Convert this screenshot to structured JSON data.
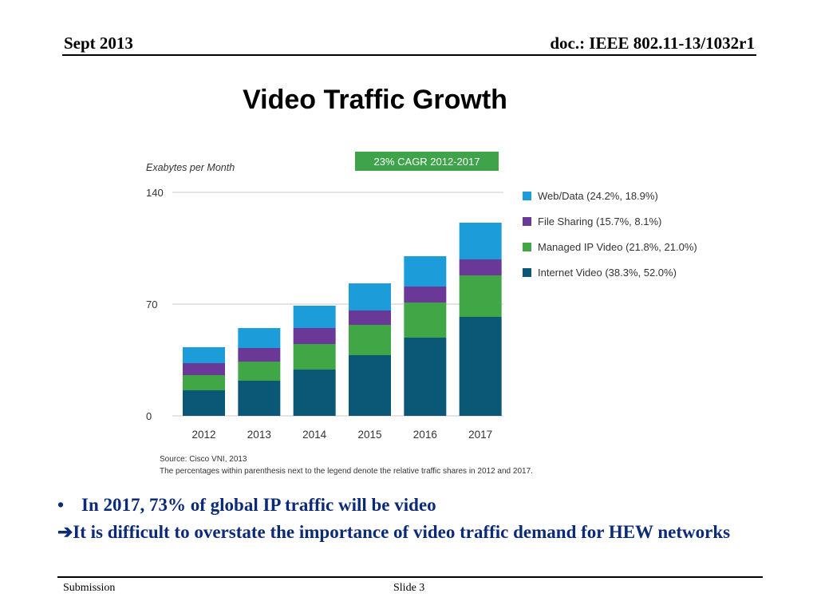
{
  "header": {
    "date": "Sept 2013",
    "doc_id": "doc.: IEEE 802.11-13/1032r1"
  },
  "slide": {
    "title": "Video Traffic Growth"
  },
  "chart_data": {
    "type": "bar",
    "stacked": true,
    "ylabel": "Exabytes per Month",
    "badge": "23% CAGR 2012-2017",
    "yticks": [
      0,
      70,
      140
    ],
    "ylim": [
      0,
      140
    ],
    "categories": [
      "2012",
      "2013",
      "2014",
      "2015",
      "2016",
      "2017"
    ],
    "series": [
      {
        "name": "Internet Video (38.3%, 52.0%)",
        "color": "#0b5876",
        "values": [
          16,
          22,
          29,
          38,
          49,
          62
        ]
      },
      {
        "name": "Managed IP Video (21.8%, 21.0%)",
        "color": "#41a646",
        "values": [
          9.5,
          12,
          16,
          19,
          22,
          26
        ]
      },
      {
        "name": "File Sharing (15.7%, 8.1%)",
        "color": "#6a3896",
        "values": [
          7.5,
          8.5,
          10,
          9,
          10,
          10
        ]
      },
      {
        "name": "Web/Data (24.2%, 18.9%)",
        "color": "#1c9cd8",
        "values": [
          10,
          12.5,
          14,
          17,
          19,
          23
        ]
      }
    ],
    "legend_order": [
      3,
      2,
      1,
      0
    ],
    "legend_position": "right",
    "source": "Source: Cisco VNI, 2013",
    "note": "The percentages within parenthesis next to the legend denote the relative traffic shares in 2012 and 2017.",
    "colors": {
      "axis_text": "#333333",
      "grid": "#c8c8c8",
      "badge_bg": "#3fa34a",
      "badge_text": "#ffffff"
    }
  },
  "bullets": [
    {
      "marker": "•",
      "text": "In 2017, 73% of global IP traffic will be video"
    },
    {
      "marker": "",
      "text": "➔It is difficult to overstate the importance of video traffic demand for HEW networks"
    }
  ],
  "footer": {
    "left": "Submission",
    "center": "Slide 3"
  }
}
